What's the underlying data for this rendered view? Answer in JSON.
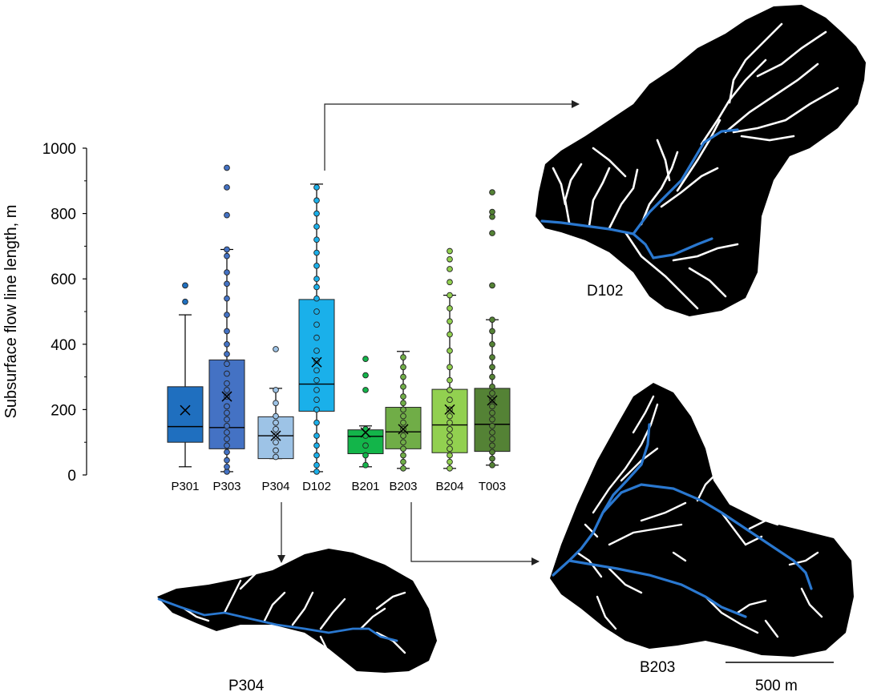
{
  "chart_data": {
    "type": "box",
    "ylabel": "Subsurface flow line length, m",
    "ylim": [
      0,
      1000
    ],
    "yticks": [
      "0",
      "200",
      "400",
      "600",
      "800",
      "1000"
    ],
    "categories": [
      "P301",
      "P303",
      "P304",
      "D102",
      "B201",
      "B203",
      "B204",
      "T003"
    ],
    "boxes": [
      {
        "name": "P301",
        "color": "#1f6fbf",
        "min": 25,
        "q1": 100,
        "median": 148,
        "q3": 270,
        "max": 490,
        "mean": 198,
        "points": [],
        "outliers": [
          530,
          580
        ]
      },
      {
        "name": "P303",
        "color": "#4472c4",
        "min": 10,
        "q1": 80,
        "median": 145,
        "q3": 352,
        "max": 690,
        "mean": 240,
        "points": [
          10,
          25,
          45,
          70,
          90,
          110,
          130,
          150,
          170,
          190,
          210,
          240,
          260,
          280,
          310,
          340,
          370,
          400,
          440,
          490,
          540,
          585,
          620,
          670,
          690
        ],
        "outliers": [
          795,
          880,
          940
        ]
      },
      {
        "name": "P304",
        "color": "#9dc3e6",
        "min": 50,
        "q1": 50,
        "median": 120,
        "q3": 178,
        "max": 265,
        "mean": 120,
        "points": [
          55,
          75,
          100,
          120,
          140,
          160,
          180,
          220,
          260
        ],
        "outliers": [
          385
        ]
      },
      {
        "name": "D102",
        "color": "#1ab0ea",
        "min": 10,
        "q1": 195,
        "median": 278,
        "q3": 537,
        "max": 890,
        "mean": 345,
        "points": [
          10,
          30,
          60,
          90,
          120,
          160,
          200,
          230,
          260,
          290,
          320,
          350,
          380,
          420,
          460,
          500,
          540,
          575,
          600,
          640,
          680,
          720,
          760,
          800,
          840,
          880
        ],
        "outliers": []
      },
      {
        "name": "B201",
        "color": "#13b54a",
        "min": 25,
        "q1": 65,
        "median": 118,
        "q3": 138,
        "max": 150,
        "mean": 130,
        "points": [
          30,
          60,
          90,
          120,
          140
        ],
        "outliers": [
          260,
          305,
          355
        ]
      },
      {
        "name": "B203",
        "color": "#70ad47",
        "min": 20,
        "q1": 80,
        "median": 132,
        "q3": 207,
        "max": 378,
        "mean": 140,
        "points": [
          20,
          40,
          60,
          80,
          100,
          120,
          140,
          160,
          180,
          200,
          220,
          240,
          270,
          300,
          330,
          360
        ],
        "outliers": []
      },
      {
        "name": "B204",
        "color": "#92d050",
        "min": 20,
        "q1": 68,
        "median": 153,
        "q3": 262,
        "max": 550,
        "mean": 200,
        "points": [
          20,
          40,
          60,
          80,
          100,
          120,
          140,
          160,
          180,
          200,
          230,
          260,
          290,
          330,
          380,
          430,
          470,
          510,
          550
        ],
        "outliers": [
          590,
          630,
          660,
          685
        ]
      },
      {
        "name": "T003",
        "color": "#548235",
        "min": 30,
        "q1": 72,
        "median": 155,
        "q3": 265,
        "max": 475,
        "mean": 228,
        "points": [
          30,
          50,
          70,
          90,
          110,
          130,
          150,
          170,
          190,
          210,
          230,
          250,
          270,
          300,
          330,
          360,
          400,
          440,
          475
        ],
        "outliers": [
          580,
          740,
          790,
          805,
          865
        ]
      }
    ]
  },
  "basins": {
    "d102_label": "D102",
    "b203_label": "B203",
    "p304_label": "P304",
    "scale_label": "500 m"
  },
  "colors": {
    "river": "#2a78d0",
    "tributary": "#ffffff",
    "basin": "#000000",
    "connector": "#444444"
  }
}
